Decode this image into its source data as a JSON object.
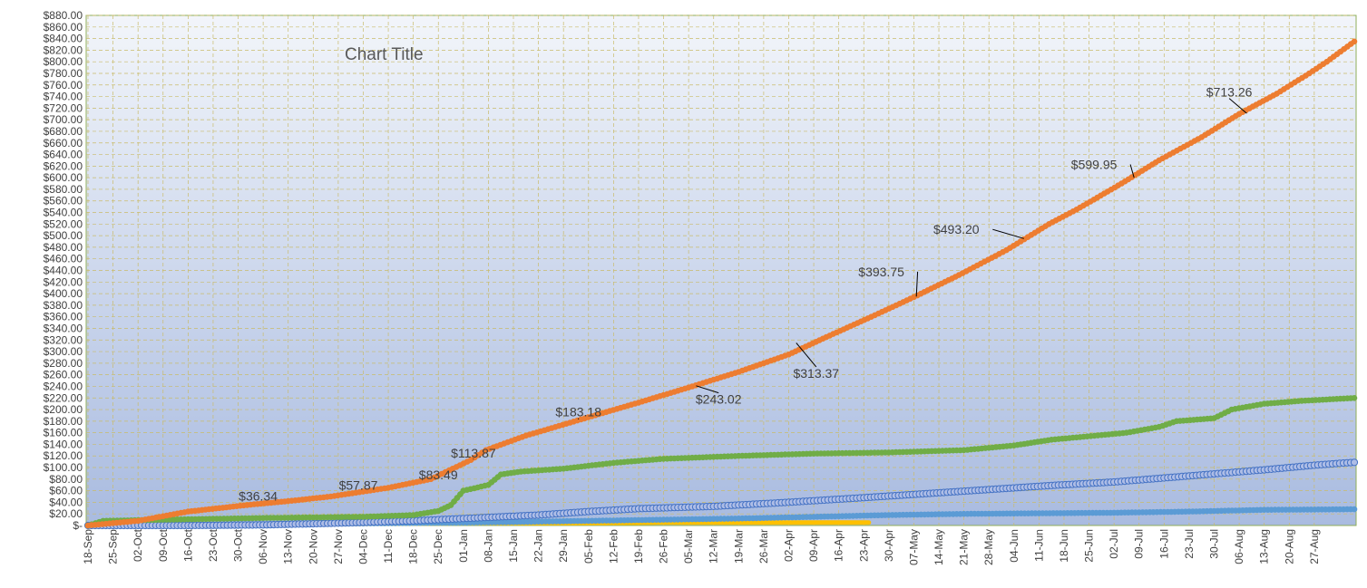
{
  "chart_data": {
    "type": "line",
    "title": "Chart Title",
    "xlabel": "",
    "ylabel": "",
    "ylim": [
      0,
      880
    ],
    "y_tick_step": 20,
    "y_tick_labels": [
      "$-",
      "$20.00",
      "$40.00",
      "$60.00",
      "$80.00",
      "$100.00",
      "$120.00",
      "$140.00",
      "$160.00",
      "$180.00",
      "$200.00",
      "$220.00",
      "$240.00",
      "$260.00",
      "$280.00",
      "$300.00",
      "$320.00",
      "$340.00",
      "$360.00",
      "$380.00",
      "$400.00",
      "$420.00",
      "$440.00",
      "$460.00",
      "$480.00",
      "$500.00",
      "$520.00",
      "$540.00",
      "$560.00",
      "$580.00",
      "$600.00",
      "$620.00",
      "$640.00",
      "$660.00",
      "$680.00",
      "$700.00",
      "$720.00",
      "$740.00",
      "$760.00",
      "$780.00",
      "$800.00",
      "$820.00",
      "$840.00",
      "$860.00",
      "$880.00"
    ],
    "x_tick_labels": [
      "18-Sep",
      "25-Sep",
      "02-Oct",
      "09-Oct",
      "16-Oct",
      "23-Oct",
      "30-Oct",
      "06-Nov",
      "13-Nov",
      "20-Nov",
      "27-Nov",
      "04-Dec",
      "11-Dec",
      "18-Dec",
      "25-Dec",
      "01-Jan",
      "08-Jan",
      "15-Jan",
      "22-Jan",
      "29-Jan",
      "05-Feb",
      "12-Feb",
      "19-Feb",
      "26-Feb",
      "05-Mar",
      "12-Mar",
      "19-Mar",
      "26-Mar",
      "02-Apr",
      "09-Apr",
      "16-Apr",
      "23-Apr",
      "30-Apr",
      "07-May",
      "14-May",
      "21-May",
      "28-May",
      "04-Jun",
      "11-Jun",
      "18-Jun",
      "25-Jun",
      "02-Jul",
      "09-Jul",
      "16-Jul",
      "23-Jul",
      "30-Jul",
      "06-Aug",
      "13-Aug",
      "20-Aug",
      "27-Aug"
    ],
    "x_max_weeks": 50.6,
    "grid": true,
    "legend": "none",
    "series": [
      {
        "color": "#ed7d31",
        "points": [
          [
            0,
            0
          ],
          [
            2,
            8
          ],
          [
            4,
            24
          ],
          [
            6.5,
            36
          ],
          [
            8,
            42
          ],
          [
            9.7,
            50
          ],
          [
            12,
            65
          ],
          [
            13.7,
            80
          ],
          [
            15.3,
            113
          ],
          [
            15.9,
            130
          ],
          [
            17.5,
            155
          ],
          [
            19.7,
            183
          ],
          [
            22,
            212
          ],
          [
            24,
            238
          ],
          [
            26,
            265
          ],
          [
            28,
            295
          ],
          [
            29.5,
            325
          ],
          [
            31.3,
            360
          ],
          [
            33,
            394
          ],
          [
            34.8,
            432
          ],
          [
            36.7,
            475
          ],
          [
            38.4,
            520
          ],
          [
            39.5,
            545
          ],
          [
            41.3,
            590
          ],
          [
            42.8,
            630
          ],
          [
            44.5,
            670
          ],
          [
            46,
            710
          ],
          [
            47.5,
            745
          ],
          [
            48.8,
            780
          ],
          [
            49.5,
            800
          ],
          [
            50.6,
            835
          ]
        ]
      },
      {
        "color": "#70ad47",
        "points": [
          [
            0,
            0
          ],
          [
            0.6,
            8
          ],
          [
            3,
            10
          ],
          [
            7,
            13
          ],
          [
            11,
            15
          ],
          [
            13,
            18
          ],
          [
            14,
            25
          ],
          [
            14.5,
            35
          ],
          [
            15,
            60
          ],
          [
            16,
            70
          ],
          [
            16.5,
            88
          ],
          [
            17.3,
            93
          ],
          [
            19,
            98
          ],
          [
            21,
            108
          ],
          [
            23,
            115
          ],
          [
            26,
            120
          ],
          [
            29,
            124
          ],
          [
            32,
            126
          ],
          [
            35,
            130
          ],
          [
            37,
            138
          ],
          [
            38.5,
            148
          ],
          [
            41.5,
            160
          ],
          [
            42.8,
            170
          ],
          [
            43.5,
            180
          ],
          [
            45,
            185
          ],
          [
            45.7,
            200
          ],
          [
            47,
            210
          ],
          [
            48.5,
            215
          ],
          [
            50.6,
            220
          ]
        ]
      },
      {
        "color": "#4472c4",
        "points": [
          [
            0,
            0
          ],
          [
            4,
            0
          ],
          [
            7,
            1
          ],
          [
            10,
            4
          ],
          [
            13,
            8
          ],
          [
            16,
            14
          ],
          [
            18,
            18
          ],
          [
            20,
            24
          ],
          [
            22,
            29
          ],
          [
            25,
            33
          ],
          [
            28,
            40
          ],
          [
            31,
            48
          ],
          [
            33.5,
            55
          ],
          [
            36,
            62
          ],
          [
            38.5,
            69
          ],
          [
            41,
            75
          ],
          [
            43,
            82
          ],
          [
            45,
            89
          ],
          [
            47,
            96
          ],
          [
            49,
            104
          ],
          [
            50.6,
            109
          ]
        ]
      },
      {
        "color": "#5b9bd5",
        "points": [
          [
            0,
            0
          ],
          [
            3,
            1
          ],
          [
            6,
            2
          ],
          [
            9,
            3
          ],
          [
            12,
            4
          ],
          [
            15,
            5
          ],
          [
            17,
            6
          ],
          [
            20,
            8
          ],
          [
            23,
            10
          ],
          [
            26,
            12
          ],
          [
            29,
            15
          ],
          [
            32,
            18
          ],
          [
            35,
            20
          ],
          [
            38,
            21
          ],
          [
            41,
            22
          ],
          [
            44,
            24
          ],
          [
            47,
            27
          ],
          [
            50.6,
            28
          ]
        ]
      },
      {
        "color": "#ffc000",
        "points": [
          [
            6.5,
            3
          ],
          [
            11,
            3
          ],
          [
            15,
            4
          ],
          [
            19,
            4
          ],
          [
            23,
            5
          ],
          [
            27,
            5
          ],
          [
            31,
            5
          ],
          [
            31.2,
            5
          ]
        ]
      }
    ],
    "data_labels": [
      {
        "text": "$36.34",
        "x": 6.6,
        "y": 37.5,
        "lx": 6.8,
        "ly": 43,
        "leader": false
      },
      {
        "text": "$57.87",
        "x": 10.7,
        "y": 55,
        "lx": 10.8,
        "ly": 62,
        "leader": false
      },
      {
        "text": "$83.49",
        "x": 14.0,
        "y": 81,
        "lx": 14.0,
        "ly": 80,
        "leader": false
      },
      {
        "text": "$113.87",
        "x": 15.4,
        "y": 115,
        "lx": 15.4,
        "ly": 117,
        "leader": true
      },
      {
        "text": "$183.18",
        "x": 19.6,
        "y": 183,
        "lx": 19.6,
        "ly": 188,
        "leader": true
      },
      {
        "text": "$243.02",
        "x": 24.3,
        "y": 241,
        "lx": 25.2,
        "ly": 210,
        "leader": true
      },
      {
        "text": "$313.37",
        "x": 28.3,
        "y": 315,
        "lx": 29.1,
        "ly": 255,
        "leader": true
      },
      {
        "text": "$393.75",
        "x": 33.1,
        "y": 395,
        "lx": 31.7,
        "ly": 430,
        "leader": true
      },
      {
        "text": "$493.20",
        "x": 37.4,
        "y": 495,
        "lx": 34.7,
        "ly": 503,
        "leader": true
      },
      {
        "text": "$599.95",
        "x": 41.8,
        "y": 600,
        "lx": 40.2,
        "ly": 615,
        "leader": true
      },
      {
        "text": "$713.26",
        "x": 46.3,
        "y": 711,
        "lx": 45.6,
        "ly": 740,
        "leader": true
      }
    ],
    "colors": {
      "plot_top": "#f2f5fa",
      "plot_bottom": "#a9bbe0",
      "plot_border": "#8fae5a",
      "grid": "#c9bb6b",
      "text": "#404040",
      "title": "#595959"
    }
  }
}
